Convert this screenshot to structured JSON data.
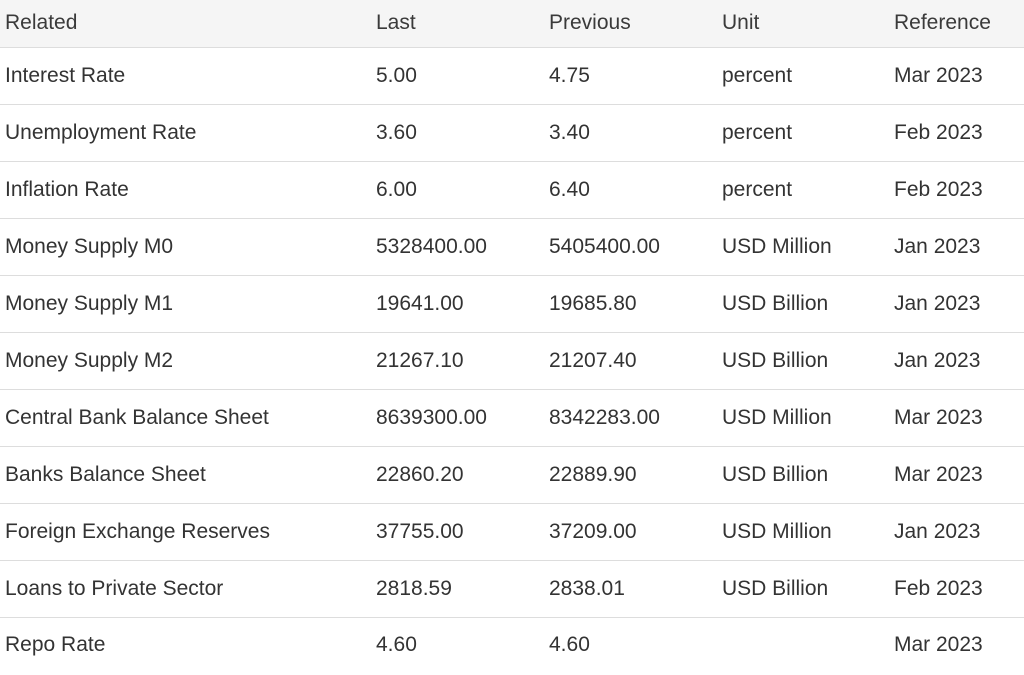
{
  "table": {
    "headers": {
      "related": "Related",
      "last": "Last",
      "previous": "Previous",
      "unit": "Unit",
      "reference": "Reference"
    },
    "rows": [
      {
        "related": "Interest Rate",
        "last": "5.00",
        "previous": "4.75",
        "unit": "percent",
        "reference": "Mar 2023"
      },
      {
        "related": "Unemployment Rate",
        "last": "3.60",
        "previous": "3.40",
        "unit": "percent",
        "reference": "Feb 2023"
      },
      {
        "related": "Inflation Rate",
        "last": "6.00",
        "previous": "6.40",
        "unit": "percent",
        "reference": "Feb 2023"
      },
      {
        "related": "Money Supply M0",
        "last": "5328400.00",
        "previous": "5405400.00",
        "unit": "USD Million",
        "reference": "Jan 2023"
      },
      {
        "related": "Money Supply M1",
        "last": "19641.00",
        "previous": "19685.80",
        "unit": "USD Billion",
        "reference": "Jan 2023"
      },
      {
        "related": "Money Supply M2",
        "last": "21267.10",
        "previous": "21207.40",
        "unit": "USD Billion",
        "reference": "Jan 2023"
      },
      {
        "related": "Central Bank Balance Sheet",
        "last": "8639300.00",
        "previous": "8342283.00",
        "unit": "USD Million",
        "reference": "Mar 2023"
      },
      {
        "related": "Banks Balance Sheet",
        "last": "22860.20",
        "previous": "22889.90",
        "unit": "USD Billion",
        "reference": "Mar 2023"
      },
      {
        "related": "Foreign Exchange Reserves",
        "last": "37755.00",
        "previous": "37209.00",
        "unit": "USD Million",
        "reference": "Jan 2023"
      },
      {
        "related": "Loans to Private Sector",
        "last": "2818.59",
        "previous": "2838.01",
        "unit": "USD Billion",
        "reference": "Feb 2023"
      },
      {
        "related": "Repo Rate",
        "last": "4.60",
        "previous": "4.60",
        "unit": "",
        "reference": "Mar 2023"
      }
    ]
  }
}
